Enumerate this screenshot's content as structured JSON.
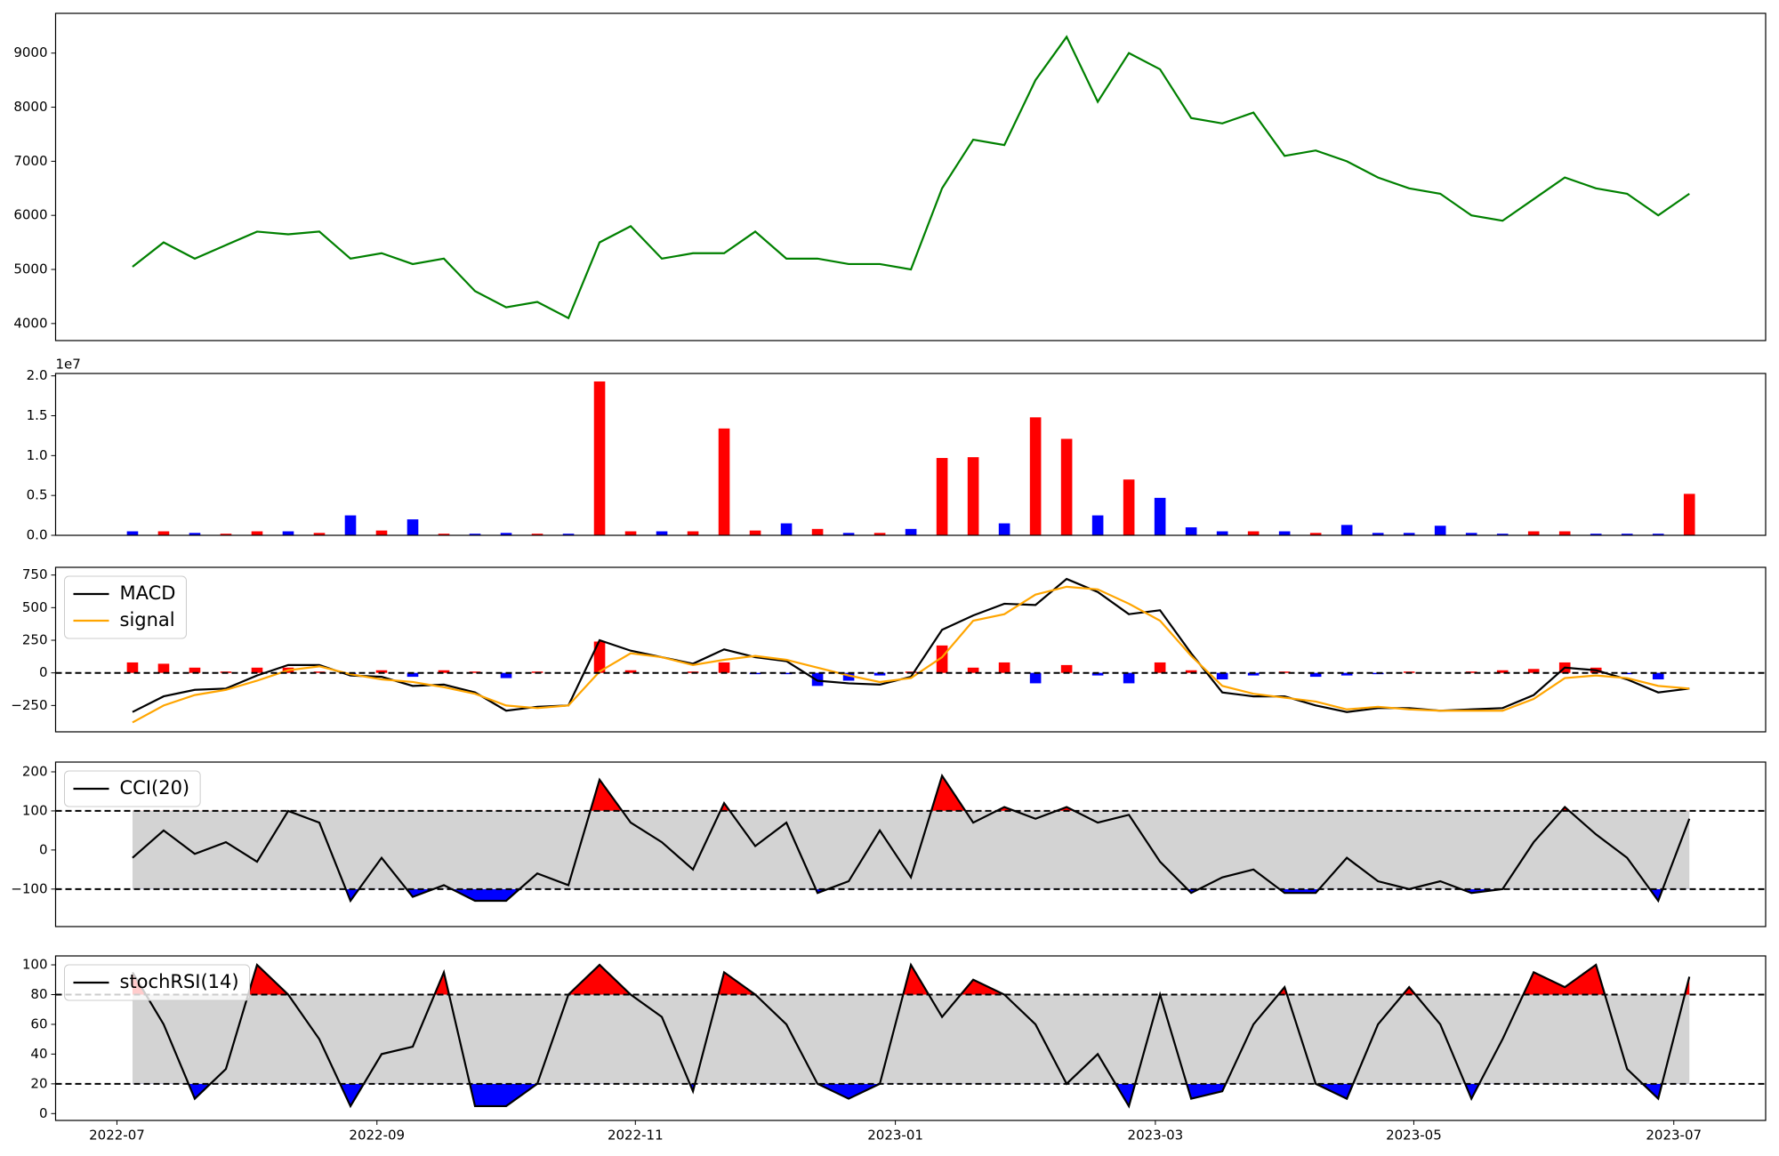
{
  "chart_data": [
    {
      "type": "line",
      "name": "price",
      "color": "green",
      "x": [
        2022.51,
        2022.53,
        2022.55,
        2022.57,
        2022.59,
        2022.61,
        2022.63,
        2022.65,
        2022.67,
        2022.69,
        2022.71,
        2022.73,
        2022.75,
        2022.77,
        2022.79,
        2022.81,
        2022.83,
        2022.85,
        2022.87,
        2022.89,
        2022.91,
        2022.93,
        2022.95,
        2022.97,
        2022.99,
        2023.01,
        2023.03,
        2023.05,
        2023.07,
        2023.09,
        2023.11,
        2023.13,
        2023.15,
        2023.17,
        2023.19,
        2023.21,
        2023.23,
        2023.25,
        2023.27,
        2023.29,
        2023.31,
        2023.33,
        2023.35,
        2023.37,
        2023.39,
        2023.41,
        2023.43,
        2023.45,
        2023.47,
        2023.49,
        2023.51
      ],
      "xlim": [
        2022.4606,
        2023.559
      ],
      "values": [
        5050,
        5500,
        5200,
        5450,
        5700,
        5650,
        5700,
        5200,
        5300,
        5100,
        5200,
        4600,
        4300,
        4400,
        4100,
        5500,
        5800,
        5200,
        5300,
        5300,
        5700,
        5200,
        5200,
        5100,
        5100,
        5000,
        6500,
        7400,
        7300,
        8500,
        9300,
        8100,
        9000,
        8700,
        7800,
        7700,
        7900,
        7100,
        7200,
        7000,
        6700,
        6500,
        6400,
        6000,
        5900,
        6300,
        6700,
        6500,
        6400,
        6000,
        6400
      ],
      "ylim": [
        3685,
        9735
      ],
      "yticks": [
        4000,
        5000,
        6000,
        7000,
        8000,
        9000
      ]
    },
    {
      "type": "bar",
      "offset_label": "1e7",
      "values": [
        0.05,
        0.05,
        0.03,
        0.02,
        0.05,
        0.05,
        0.03,
        0.25,
        0.06,
        0.2,
        0.02,
        0.02,
        0.03,
        0.02,
        0.02,
        1.93,
        0.05,
        0.05,
        0.05,
        1.34,
        0.06,
        0.15,
        0.08,
        0.03,
        0.03,
        0.08,
        0.97,
        0.98,
        0.15,
        1.48,
        1.21,
        0.25,
        0.7,
        0.47,
        0.1,
        0.05,
        0.05,
        0.05,
        0.03,
        0.13,
        0.03,
        0.03,
        0.12,
        0.03,
        0.02,
        0.05,
        0.05,
        0.02,
        0.02,
        0.02,
        0.52
      ],
      "colors": [
        "blue",
        "red",
        "blue",
        "red",
        "red",
        "blue",
        "red",
        "blue",
        "red",
        "blue",
        "red",
        "blue",
        "blue",
        "red",
        "blue",
        "red",
        "red",
        "blue",
        "red",
        "red",
        "red",
        "blue",
        "red",
        "blue",
        "red",
        "blue",
        "red",
        "red",
        "blue",
        "red",
        "red",
        "blue",
        "red",
        "blue",
        "blue",
        "blue",
        "red",
        "blue",
        "red",
        "blue",
        "blue",
        "blue",
        "blue",
        "blue",
        "blue",
        "red",
        "red",
        "blue",
        "blue",
        "blue",
        "red"
      ],
      "ylim": [
        0,
        2.03
      ],
      "yticks": [
        {
          "value": 0,
          "label": "0.0"
        },
        0.5,
        {
          "value": 1,
          "label": "1.0"
        },
        1.5,
        {
          "value": 2,
          "label": "2.0"
        }
      ]
    },
    {
      "type": "line",
      "legend": "upper left",
      "hlines": [
        0
      ],
      "series": [
        {
          "name": "MACD",
          "color": "black",
          "values": [
            -300,
            -180,
            -130,
            -120,
            -20,
            60,
            60,
            -20,
            -30,
            -100,
            -90,
            -150,
            -290,
            -260,
            -250,
            250,
            170,
            120,
            70,
            180,
            120,
            90,
            -60,
            -80,
            -90,
            -30,
            330,
            440,
            530,
            520,
            720,
            620,
            450,
            480,
            150,
            -150,
            -180,
            -180,
            -250,
            -300,
            -270,
            -270,
            -290,
            -280,
            -270,
            -170,
            40,
            20,
            -50,
            -150,
            -120
          ]
        },
        {
          "name": "signal",
          "color": "orange",
          "values": [
            -380,
            -250,
            -170,
            -130,
            -60,
            20,
            50,
            -10,
            -50,
            -70,
            -110,
            -160,
            -250,
            -270,
            -250,
            10,
            150,
            120,
            60,
            100,
            130,
            100,
            40,
            -20,
            -70,
            -40,
            120,
            400,
            450,
            600,
            660,
            640,
            530,
            400,
            130,
            -100,
            -160,
            -190,
            -220,
            -280,
            -260,
            -280,
            -290,
            -290,
            -290,
            -200,
            -40,
            -20,
            -40,
            -100,
            -120
          ]
        }
      ],
      "histogram": {
        "positive_color": "red",
        "negative_color": "blue",
        "values": [
          80,
          70,
          40,
          10,
          40,
          40,
          10,
          -10,
          20,
          -30,
          20,
          10,
          -40,
          10,
          0,
          240,
          20,
          0,
          10,
          80,
          -10,
          -10,
          -100,
          -60,
          -20,
          10,
          210,
          40,
          80,
          -80,
          60,
          -20,
          -80,
          80,
          20,
          -50,
          -20,
          10,
          -30,
          -20,
          -10,
          10,
          0,
          10,
          20,
          30,
          80,
          40,
          -10,
          -50,
          0
        ]
      },
      "ylim": [
        -452,
        809
      ],
      "yticks": [
        {
          "value": -250,
          "label": "−250"
        },
        0,
        250,
        500,
        750
      ]
    },
    {
      "type": "line",
      "legend": "upper left",
      "hlines": [
        -100,
        100
      ],
      "band": [
        -100,
        100
      ],
      "band_color": "lightgray",
      "upper_color": "red",
      "lower_color": "blue",
      "series": [
        {
          "name": "CCI(20)",
          "color": "black",
          "values": [
            -20,
            50,
            -10,
            20,
            -30,
            100,
            70,
            -130,
            -20,
            -120,
            -90,
            -130,
            -130,
            -60,
            -90,
            180,
            70,
            20,
            -50,
            120,
            10,
            70,
            -110,
            -80,
            50,
            -70,
            190,
            70,
            110,
            80,
            110,
            70,
            90,
            -30,
            -110,
            -70,
            -50,
            -110,
            -110,
            -20,
            -80,
            -100,
            -80,
            -110,
            -100,
            20,
            110,
            40,
            -20,
            -130,
            80
          ]
        }
      ],
      "ylim": [
        -196,
        225
      ],
      "yticks": [
        {
          "value": -100,
          "label": "−100"
        },
        0,
        100,
        200
      ]
    },
    {
      "type": "line",
      "legend": "upper left",
      "hlines": [
        20,
        80
      ],
      "band": [
        20,
        80
      ],
      "band_color": "lightgray",
      "upper_color": "red",
      "lower_color": "blue",
      "series": [
        {
          "name": "stochRSI(14)",
          "color": "black",
          "values": [
            95,
            60,
            10,
            30,
            100,
            80,
            50,
            5,
            40,
            45,
            95,
            5,
            5,
            20,
            80,
            100,
            80,
            65,
            15,
            95,
            80,
            60,
            20,
            10,
            20,
            100,
            65,
            90,
            80,
            60,
            20,
            40,
            5,
            80,
            10,
            15,
            60,
            85,
            20,
            10,
            60,
            85,
            60,
            10,
            50,
            95,
            85,
            100,
            30,
            10,
            92
          ]
        }
      ],
      "ylim": [
        -4.6,
        106
      ],
      "yticks": [
        0,
        20,
        40,
        60,
        80,
        100
      ],
      "xticks": [
        {
          "value": 2022.5,
          "label": "2022-07"
        },
        {
          "value": 2022.667,
          "label": "2022-09"
        },
        {
          "value": 2022.833,
          "label": "2022-11"
        },
        {
          "value": 2023.0,
          "label": "2023-01"
        },
        {
          "value": 2023.167,
          "label": "2023-03"
        },
        {
          "value": 2023.333,
          "label": "2023-05"
        },
        {
          "value": 2023.5,
          "label": "2023-07"
        }
      ]
    }
  ]
}
